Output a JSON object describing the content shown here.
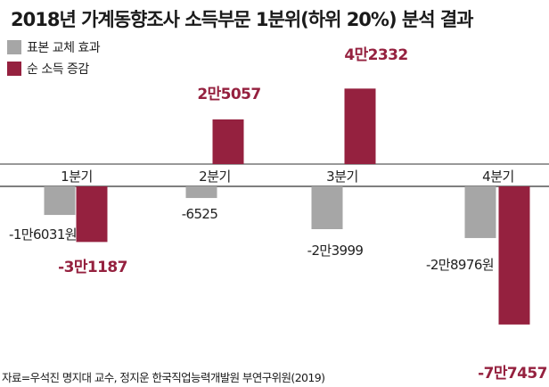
{
  "title": "2018년 가계동향조사 소득부문 1분위(하위 20%) 분석 결과",
  "source": "자료=우석진 명지대 교수, 정지운 한국직업능력개발원 부연구위원(2019)",
  "colors": {
    "sample": "#a6a6a6",
    "net": "#95213f",
    "axis": "#333333",
    "label": "#222222"
  },
  "chart_data": {
    "type": "bar",
    "categories": [
      "1분기",
      "2분기",
      "3분기",
      "4분기"
    ],
    "series": [
      {
        "name": "표본 교체 효과",
        "color": "#a6a6a6",
        "values": [
          -16031,
          -6525,
          -23999,
          -28976
        ],
        "labels": [
          "-1만6031원",
          "-6525",
          "-2만3999",
          "-2만8976원"
        ]
      },
      {
        "name": "순 소득 증감",
        "color": "#95213f",
        "values": [
          -31187,
          25057,
          42332,
          -77457
        ],
        "labels": [
          "-3만1187",
          "2만5057",
          "4만2332",
          "-7만7457"
        ]
      }
    ],
    "legend": "top-left",
    "grid": false
  }
}
